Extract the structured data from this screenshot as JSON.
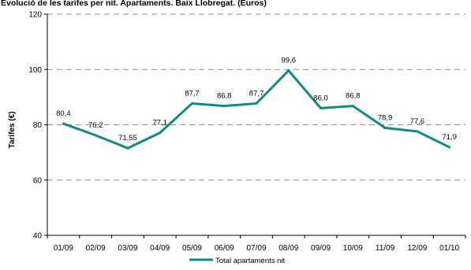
{
  "chart_data": {
    "type": "line",
    "title": "Evolució de les tarifes per nit. Apartaments. Baix Llobregat. (Euros)",
    "ylabel": "Tarifes (€)",
    "xlabel": "",
    "ylim": [
      40,
      120
    ],
    "y_ticks": [
      "40",
      "60",
      "80",
      "100",
      "120"
    ],
    "categories": [
      "01/09",
      "02/09",
      "03/09",
      "04/09",
      "05/09",
      "06/09",
      "07/09",
      "08/09",
      "09/09",
      "10/09",
      "11/09",
      "12/09",
      "01/10"
    ],
    "grid": "horizontal dashed",
    "legend_position": "bottom",
    "series": [
      {
        "name": "Total apartaments nit",
        "color": "#0f8a84",
        "values": [
          80.4,
          76.2,
          71.55,
          77.1,
          87.7,
          86.8,
          87.7,
          99.6,
          86.0,
          86.8,
          78.9,
          77.6,
          71.9
        ],
        "labels": [
          "80,4",
          "76,2",
          "71,55",
          "77,1",
          "87,7",
          "86,8",
          "87,7",
          "99,6",
          "86,0",
          "86,8",
          "78,9",
          "77,6",
          "71,9"
        ]
      }
    ]
  }
}
